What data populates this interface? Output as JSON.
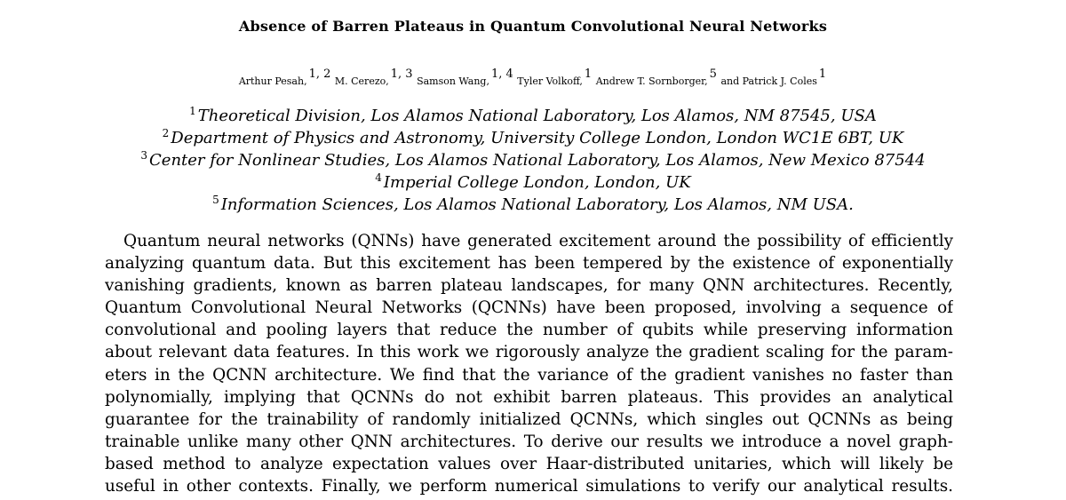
{
  "paper": {
    "title": "Absence of Barren Plateaus in Quantum Convolutional Neural Networks",
    "authors": [
      {
        "name": "Arthur Pesah,",
        "affil": "1, 2"
      },
      {
        "name": "M. Cerezo,",
        "affil": "1, 3"
      },
      {
        "name": "Samson Wang,",
        "affil": "1, 4"
      },
      {
        "name": "Tyler Volkoff,",
        "affil": "1"
      },
      {
        "name": "Andrew T. Sornborger,",
        "affil": "5"
      },
      {
        "name": "and Patrick J. Coles",
        "affil": "1"
      }
    ],
    "affiliations": [
      {
        "num": "1",
        "text": "Theoretical Division, Los Alamos National Laboratory, Los Alamos, NM 87545, USA"
      },
      {
        "num": "2",
        "text": "Department of Physics and Astronomy, University College London, London WC1E 6BT, UK"
      },
      {
        "num": "3",
        "text": "Center for Nonlinear Studies, Los Alamos National Laboratory, Los Alamos, New Mexico 87544"
      },
      {
        "num": "4",
        "text": "Imperial College London, London, UK"
      },
      {
        "num": "5",
        "text": "Information Sciences, Los Alamos National Laboratory, Los Alamos, NM USA."
      }
    ],
    "abstract_lines": [
      "Quantum neural networks (QNNs) have generated excitement around the possibility of efficiently",
      "analyzing quantum data. But this excitement has been tempered by the existence of exponentially",
      "vanishing gradients, known as barren plateau landscapes, for many QNN architectures. Recently,",
      "Quantum Convolutional Neural Networks (QCNNs) have been proposed, involving a sequence of",
      "convolutional and pooling layers that reduce the number of qubits while preserving information",
      "about relevant data features. In this work we rigorously analyze the gradient scaling for the param-",
      "eters in the QCNN architecture. We find that the variance of the gradient vanishes no faster than",
      "polynomially, implying that QCNNs do not exhibit barren plateaus. This provides an analytical",
      "guarantee for the trainability of randomly initialized QCNNs, which singles out QCNNs as being",
      "trainable unlike many other QNN architectures. To derive our results we introduce a novel graph-",
      "based method to analyze expectation values over Haar-distributed unitaries, which will likely be",
      "useful in other contexts. Finally, we perform numerical simulations to verify our analytical results."
    ]
  }
}
